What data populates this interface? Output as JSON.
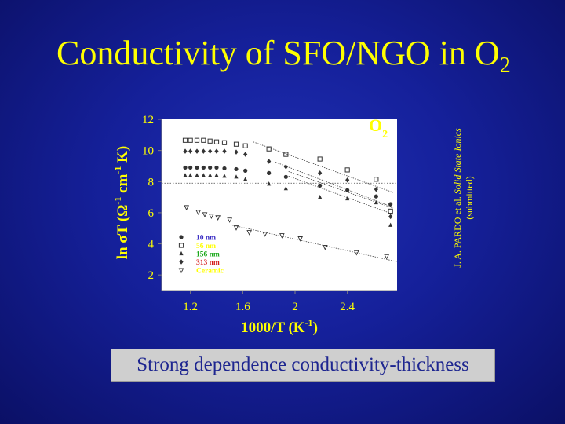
{
  "slide": {
    "title_main": "Conductivity of SFO/NGO in O",
    "title_sub": "2",
    "citation_author": "J. A. PARDO et al.",
    "citation_journal": "Solid State Ionics",
    "citation_status": "(submitted)",
    "caption": "Strong dependence conductivity-thickness"
  },
  "chart_data": {
    "type": "scatter",
    "title": "",
    "panel_label": "O",
    "panel_label_sub": "2",
    "xlabel_main": "1000/T (K",
    "xlabel_sup": "-1",
    "xlabel_end": ")",
    "ylabel_pre": "ln ",
    "ylabel_sigma": "σ",
    "ylabel_mid": "T (Ω",
    "ylabel_sup1": "-1",
    "ylabel_mid2": " cm",
    "ylabel_sup2": "-1",
    "ylabel_end": " K)",
    "xlim": [
      0.98,
      2.78
    ],
    "ylim": [
      1.0,
      12.0
    ],
    "x_ticks": [
      1.2,
      1.6,
      2.0,
      2.4
    ],
    "x_tick_labels": [
      "1.2",
      "1.6",
      "2",
      "2.4"
    ],
    "y_ticks": [
      2,
      4,
      6,
      8,
      10,
      12
    ],
    "y_tick_labels": [
      "2",
      "4",
      "6",
      "8",
      "10",
      "12"
    ],
    "reference_line_y": 7.9,
    "grid": false,
    "legend_position": "bottom-left",
    "colors": {
      "plot_background": "#ffffff",
      "axis": "#808080",
      "tick_label": "#ffff00",
      "axis_title": "#ffff00",
      "marker": "#333333",
      "fit_line": "#444444",
      "panel_label": "#ffff00"
    },
    "series": [
      {
        "name": "10 nm",
        "label_color": "#3b2ec4",
        "marker": "filled-circle",
        "x": [
          1.16,
          1.2,
          1.25,
          1.3,
          1.35,
          1.4,
          1.46,
          1.55,
          1.62,
          1.8,
          1.93,
          2.19,
          2.4,
          2.62,
          2.73
        ],
        "y": [
          8.9,
          8.9,
          8.9,
          8.9,
          8.9,
          8.9,
          8.85,
          8.8,
          8.7,
          8.55,
          8.3,
          7.75,
          7.45,
          7.05,
          6.55
        ]
      },
      {
        "name": "56 nm",
        "label_color": "#ffff00",
        "marker": "open-square",
        "x": [
          1.16,
          1.2,
          1.25,
          1.3,
          1.35,
          1.4,
          1.46,
          1.55,
          1.62,
          1.8,
          1.93,
          2.19,
          2.4,
          2.62,
          2.73
        ],
        "y": [
          10.65,
          10.65,
          10.65,
          10.65,
          10.6,
          10.55,
          10.5,
          10.4,
          10.3,
          10.1,
          9.75,
          9.45,
          8.75,
          8.15,
          6.1
        ]
      },
      {
        "name": "156 nm",
        "label_color": "#19a819",
        "marker": "filled-triangle",
        "x": [
          1.16,
          1.2,
          1.25,
          1.3,
          1.35,
          1.4,
          1.46,
          1.55,
          1.62,
          1.8,
          1.93,
          2.19,
          2.4,
          2.62,
          2.73
        ],
        "y": [
          8.4,
          8.4,
          8.4,
          8.4,
          8.4,
          8.4,
          8.35,
          8.3,
          8.15,
          7.85,
          7.55,
          7.0,
          6.9,
          6.65,
          5.2
        ]
      },
      {
        "name": "313 nm",
        "label_color": "#d41a1a",
        "marker": "filled-diamond",
        "x": [
          1.16,
          1.2,
          1.25,
          1.3,
          1.35,
          1.4,
          1.46,
          1.55,
          1.62,
          1.8,
          1.93,
          2.19,
          2.4,
          2.62,
          2.73
        ],
        "y": [
          9.95,
          9.95,
          9.95,
          9.95,
          9.95,
          9.95,
          9.95,
          9.9,
          9.75,
          9.3,
          8.95,
          8.55,
          8.1,
          7.5,
          5.75
        ]
      },
      {
        "name": "Ceramic",
        "label_color": "#ffff00",
        "marker": "open-triangle-down",
        "x": [
          1.17,
          1.26,
          1.31,
          1.36,
          1.41,
          1.5,
          1.55,
          1.65,
          1.77,
          1.9,
          2.04,
          2.23,
          2.47,
          2.7
        ],
        "y": [
          6.35,
          6.05,
          5.9,
          5.8,
          5.7,
          5.55,
          5.05,
          4.75,
          4.65,
          4.55,
          4.35,
          3.8,
          3.45,
          3.2
        ]
      }
    ],
    "fit_lines": [
      {
        "series": "56 nm",
        "x": [
          1.68,
          2.75
        ],
        "y": [
          10.55,
          7.3
        ]
      },
      {
        "series": "313 nm",
        "x": [
          1.85,
          2.75
        ],
        "y": [
          9.25,
          6.35
        ]
      },
      {
        "series": "10 nm",
        "x": [
          1.95,
          2.75
        ],
        "y": [
          8.65,
          6.3
        ]
      },
      {
        "series": "156 nm",
        "x": [
          1.95,
          2.75
        ],
        "y": [
          8.35,
          5.9
        ]
      },
      {
        "series": "Ceramic",
        "x": [
          1.52,
          2.78
        ],
        "y": [
          5.2,
          2.85
        ]
      }
    ]
  }
}
